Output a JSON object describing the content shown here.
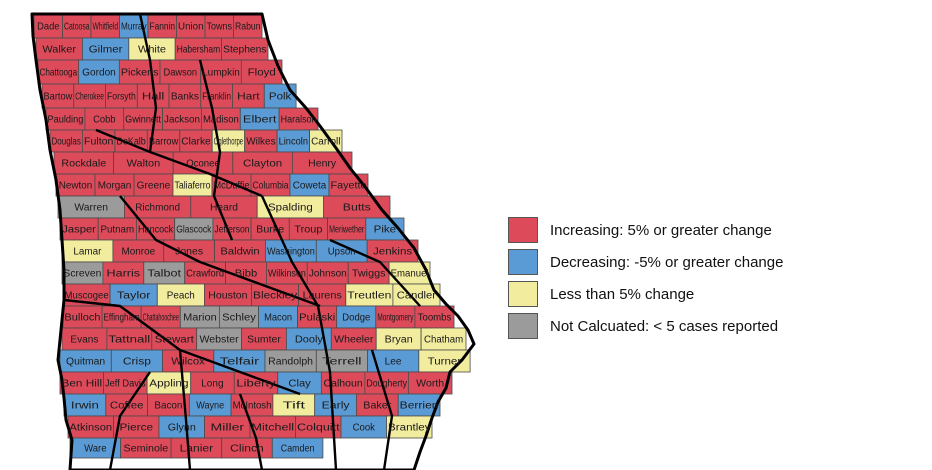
{
  "colors": {
    "increasing": "#dd4a5a",
    "decreasing": "#5b9bd5",
    "less_than_5": "#f2ec9e",
    "not_calculated": "#9b9b9b",
    "border": "#1a1a1a"
  },
  "legend": [
    {
      "category": "increasing",
      "label": "Increasing: 5% or greater change",
      "color": "#dd4a5a"
    },
    {
      "category": "decreasing",
      "label": "Decreasing: -5% or greater change",
      "color": "#5b9bd5"
    },
    {
      "category": "less_than_5",
      "label": "Less than 5% change",
      "color": "#f2ec9e"
    },
    {
      "category": "not_calculated",
      "label": "Not Calcuated: < 5 cases reported",
      "color": "#9b9b9b"
    }
  ],
  "counties": [
    {
      "name": "Dade",
      "category": "increasing"
    },
    {
      "name": "Catoosa",
      "category": "increasing"
    },
    {
      "name": "Whitfield",
      "category": "increasing"
    },
    {
      "name": "Murray",
      "category": "decreasing"
    },
    {
      "name": "Fannin",
      "category": "increasing"
    },
    {
      "name": "Union",
      "category": "increasing"
    },
    {
      "name": "Towns",
      "category": "increasing"
    },
    {
      "name": "Rabun",
      "category": "increasing"
    },
    {
      "name": "Walker",
      "category": "increasing"
    },
    {
      "name": "Gilmer",
      "category": "decreasing"
    },
    {
      "name": "White",
      "category": "less_than_5"
    },
    {
      "name": "Habersham",
      "category": "increasing"
    },
    {
      "name": "Stephens",
      "category": "increasing"
    },
    {
      "name": "Chattooga",
      "category": "increasing"
    },
    {
      "name": "Gordon",
      "category": "decreasing"
    },
    {
      "name": "Pickens",
      "category": "increasing"
    },
    {
      "name": "Dawson",
      "category": "increasing"
    },
    {
      "name": "Lumpkin",
      "category": "increasing"
    },
    {
      "name": "Floyd",
      "category": "increasing"
    },
    {
      "name": "Bartow",
      "category": "increasing"
    },
    {
      "name": "Cherokee",
      "category": "increasing"
    },
    {
      "name": "Forsyth",
      "category": "increasing"
    },
    {
      "name": "Hall",
      "category": "increasing"
    },
    {
      "name": "Banks",
      "category": "increasing"
    },
    {
      "name": "Franklin",
      "category": "increasing"
    },
    {
      "name": "Hart",
      "category": "increasing"
    },
    {
      "name": "Polk",
      "category": "decreasing"
    },
    {
      "name": "Paulding",
      "category": "increasing"
    },
    {
      "name": "Cobb",
      "category": "increasing"
    },
    {
      "name": "Gwinnett",
      "category": "increasing"
    },
    {
      "name": "Jackson",
      "category": "increasing"
    },
    {
      "name": "Madison",
      "category": "increasing"
    },
    {
      "name": "Elbert",
      "category": "decreasing"
    },
    {
      "name": "Haralson",
      "category": "increasing"
    },
    {
      "name": "Douglas",
      "category": "increasing"
    },
    {
      "name": "Fulton",
      "category": "increasing"
    },
    {
      "name": "DeKalb",
      "category": "increasing"
    },
    {
      "name": "Barrow",
      "category": "increasing"
    },
    {
      "name": "Clarke",
      "category": "increasing"
    },
    {
      "name": "Oglethorpe",
      "category": "less_than_5"
    },
    {
      "name": "Wilkes",
      "category": "increasing"
    },
    {
      "name": "Lincoln",
      "category": "decreasing"
    },
    {
      "name": "Carroll",
      "category": "less_than_5"
    },
    {
      "name": "Rockdale",
      "category": "increasing"
    },
    {
      "name": "Walton",
      "category": "increasing"
    },
    {
      "name": "Oconee",
      "category": "increasing"
    },
    {
      "name": "Clayton",
      "category": "increasing"
    },
    {
      "name": "Henry",
      "category": "increasing"
    },
    {
      "name": "Newton",
      "category": "increasing"
    },
    {
      "name": "Morgan",
      "category": "increasing"
    },
    {
      "name": "Greene",
      "category": "increasing"
    },
    {
      "name": "Taliaferro",
      "category": "less_than_5"
    },
    {
      "name": "McDuffie",
      "category": "increasing"
    },
    {
      "name": "Columbia",
      "category": "increasing"
    },
    {
      "name": "Coweta",
      "category": "decreasing"
    },
    {
      "name": "Fayette",
      "category": "increasing"
    },
    {
      "name": "Warren",
      "category": "not_calculated"
    },
    {
      "name": "Richmond",
      "category": "increasing"
    },
    {
      "name": "Heard",
      "category": "increasing"
    },
    {
      "name": "Spalding",
      "category": "less_than_5"
    },
    {
      "name": "Butts",
      "category": "increasing"
    },
    {
      "name": "Jasper",
      "category": "increasing"
    },
    {
      "name": "Putnam",
      "category": "increasing"
    },
    {
      "name": "Hancock",
      "category": "increasing"
    },
    {
      "name": "Glascock",
      "category": "not_calculated"
    },
    {
      "name": "Jefferson",
      "category": "increasing"
    },
    {
      "name": "Burke",
      "category": "increasing"
    },
    {
      "name": "Troup",
      "category": "increasing"
    },
    {
      "name": "Meriwether",
      "category": "increasing"
    },
    {
      "name": "Pike",
      "category": "decreasing"
    },
    {
      "name": "Lamar",
      "category": "less_than_5"
    },
    {
      "name": "Monroe",
      "category": "increasing"
    },
    {
      "name": "Jones",
      "category": "increasing"
    },
    {
      "name": "Baldwin",
      "category": "increasing"
    },
    {
      "name": "Washington",
      "category": "decreasing"
    },
    {
      "name": "Upson",
      "category": "decreasing"
    },
    {
      "name": "Jenkins",
      "category": "increasing"
    },
    {
      "name": "Screven",
      "category": "not_calculated"
    },
    {
      "name": "Harris",
      "category": "increasing"
    },
    {
      "name": "Talbot",
      "category": "not_calculated"
    },
    {
      "name": "Crawford",
      "category": "increasing"
    },
    {
      "name": "Bibb",
      "category": "increasing"
    },
    {
      "name": "Wilkinson",
      "category": "increasing"
    },
    {
      "name": "Johnson",
      "category": "increasing"
    },
    {
      "name": "Twiggs",
      "category": "increasing"
    },
    {
      "name": "Emanuel",
      "category": "less_than_5"
    },
    {
      "name": "Muscogee",
      "category": "increasing"
    },
    {
      "name": "Taylor",
      "category": "decreasing"
    },
    {
      "name": "Peach",
      "category": "less_than_5"
    },
    {
      "name": "Houston",
      "category": "increasing"
    },
    {
      "name": "Bleckley",
      "category": "increasing"
    },
    {
      "name": "Laurens",
      "category": "increasing"
    },
    {
      "name": "Treutlen",
      "category": "less_than_5"
    },
    {
      "name": "Candler",
      "category": "less_than_5"
    },
    {
      "name": "Bulloch",
      "category": "increasing"
    },
    {
      "name": "Effingham",
      "category": "increasing"
    },
    {
      "name": "Chattahoochee",
      "category": "increasing"
    },
    {
      "name": "Marion",
      "category": "not_calculated"
    },
    {
      "name": "Schley",
      "category": "not_calculated"
    },
    {
      "name": "Macon",
      "category": "decreasing"
    },
    {
      "name": "Pulaski",
      "category": "increasing"
    },
    {
      "name": "Dodge",
      "category": "decreasing"
    },
    {
      "name": "Montgomery",
      "category": "increasing"
    },
    {
      "name": "Toombs",
      "category": "increasing"
    },
    {
      "name": "Evans",
      "category": "increasing"
    },
    {
      "name": "Tattnall",
      "category": "increasing"
    },
    {
      "name": "Stewart",
      "category": "increasing"
    },
    {
      "name": "Webster",
      "category": "not_calculated"
    },
    {
      "name": "Sumter",
      "category": "increasing"
    },
    {
      "name": "Dooly",
      "category": "decreasing"
    },
    {
      "name": "Wheeler",
      "category": "increasing"
    },
    {
      "name": "Bryan",
      "category": "less_than_5"
    },
    {
      "name": "Chatham",
      "category": "less_than_5"
    },
    {
      "name": "Quitman",
      "category": "decreasing"
    },
    {
      "name": "Crisp",
      "category": "decreasing"
    },
    {
      "name": "Wilcox",
      "category": "increasing"
    },
    {
      "name": "Telfair",
      "category": "decreasing"
    },
    {
      "name": "Randolph",
      "category": "not_calculated"
    },
    {
      "name": "Terrell",
      "category": "not_calculated"
    },
    {
      "name": "Lee",
      "category": "decreasing"
    },
    {
      "name": "Turner",
      "category": "less_than_5"
    },
    {
      "name": "Ben Hill",
      "category": "increasing"
    },
    {
      "name": "Jeff Davis",
      "category": "increasing"
    },
    {
      "name": "Appling",
      "category": "less_than_5"
    },
    {
      "name": "Long",
      "category": "increasing"
    },
    {
      "name": "Liberty",
      "category": "increasing"
    },
    {
      "name": "Clay",
      "category": "decreasing"
    },
    {
      "name": "Calhoun",
      "category": "increasing"
    },
    {
      "name": "Dougherty",
      "category": "increasing"
    },
    {
      "name": "Worth",
      "category": "increasing"
    },
    {
      "name": "Irwin",
      "category": "decreasing"
    },
    {
      "name": "Coffee",
      "category": "increasing"
    },
    {
      "name": "Bacon",
      "category": "increasing"
    },
    {
      "name": "Wayne",
      "category": "decreasing"
    },
    {
      "name": "McIntosh",
      "category": "increasing"
    },
    {
      "name": "Tift",
      "category": "less_than_5"
    },
    {
      "name": "Early",
      "category": "decreasing"
    },
    {
      "name": "Baker",
      "category": "increasing"
    },
    {
      "name": "Berrien",
      "category": "decreasing"
    },
    {
      "name": "Atkinson",
      "category": "increasing"
    },
    {
      "name": "Pierce",
      "category": "increasing"
    },
    {
      "name": "Glynn",
      "category": "decreasing"
    },
    {
      "name": "Miller",
      "category": "increasing"
    },
    {
      "name": "Mitchell",
      "category": "increasing"
    },
    {
      "name": "Colquitt",
      "category": "increasing"
    },
    {
      "name": "Cook",
      "category": "decreasing"
    },
    {
      "name": "Brantley",
      "category": "less_than_5"
    },
    {
      "name": "Ware",
      "category": "decreasing"
    },
    {
      "name": "Seminole",
      "category": "increasing"
    },
    {
      "name": "Lanier",
      "category": "increasing"
    },
    {
      "name": "Clinch",
      "category": "increasing"
    },
    {
      "name": "Camden",
      "category": "decreasing"
    }
  ]
}
